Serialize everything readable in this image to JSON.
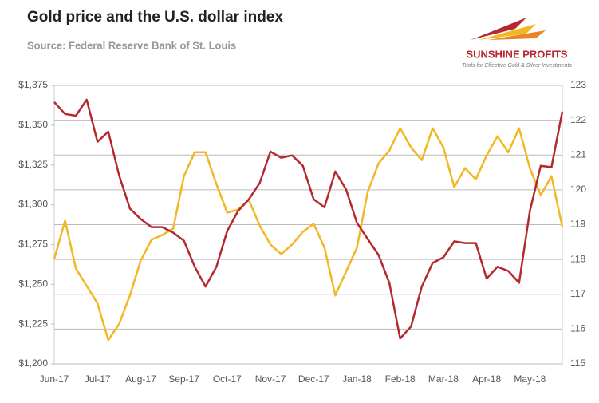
{
  "chart_data": {
    "type": "line",
    "title": "Gold price and the U.S. dollar index",
    "subtitle": "Source: Federal Reserve Bank of St. Louis",
    "logo_title": "SUNSHINE PROFITS",
    "logo_tagline": "Tools for Effective Gold & Silver Investments",
    "categories": [
      "Jun-17",
      null,
      null,
      null,
      "Jul-17",
      null,
      null,
      null,
      "Aug-17",
      null,
      null,
      null,
      "Sep-17",
      null,
      null,
      null,
      "Oct-17",
      null,
      null,
      null,
      "Nov-17",
      null,
      null,
      null,
      "Dec-17",
      null,
      null,
      null,
      "Jan-18",
      null,
      null,
      null,
      "Feb-18",
      null,
      null,
      null,
      "Mar-18",
      null,
      null,
      null,
      "Apr-18",
      null,
      null,
      null,
      "May-18",
      null,
      null,
      null
    ],
    "series": [
      {
        "color": "#f2b824",
        "values": [
          1266,
          1290,
          1260,
          1249,
          1238,
          1215,
          1225,
          1243,
          1265,
          1278,
          1281,
          1285,
          1318,
          1333,
          1333,
          1313,
          1295,
          1297,
          1303,
          1287,
          1275,
          1269,
          1275,
          1283,
          1288,
          1273,
          1243,
          1258,
          1273,
          1308,
          1326,
          1334,
          1348,
          1336,
          1328,
          1348,
          1336,
          1311,
          1323,
          1316,
          1331,
          1343,
          1333,
          1348,
          1323,
          1306,
          1318,
          1286
        ]
      },
      {
        "color": "#b5292e",
        "axis": "y2",
        "values": [
          122.52,
          122.18,
          122.13,
          122.59,
          121.38,
          121.67,
          120.42,
          119.46,
          119.16,
          118.93,
          118.93,
          118.77,
          118.54,
          117.79,
          117.22,
          117.79,
          118.82,
          119.39,
          119.73,
          120.19,
          121.1,
          120.92,
          120.99,
          120.69,
          119.73,
          119.5,
          120.53,
          120.01,
          119.05,
          118.59,
          118.13,
          117.33,
          115.73,
          116.07,
          117.22,
          117.9,
          118.06,
          118.52,
          118.47,
          118.47,
          117.45,
          117.79,
          117.67,
          117.33,
          119.39,
          120.69,
          120.65,
          122.25
        ]
      }
    ],
    "ylim": [
      1200,
      1375
    ],
    "yticks": [
      {
        "value": 1200,
        "label": "$1,200"
      },
      {
        "value": 1225,
        "label": "$1,225"
      },
      {
        "value": 1250,
        "label": "$1,250"
      },
      {
        "value": 1275,
        "label": "$1,275"
      },
      {
        "value": 1300,
        "label": "$1,300"
      },
      {
        "value": 1325,
        "label": "$1,325"
      },
      {
        "value": 1350,
        "label": "$1,350"
      },
      {
        "value": 1375,
        "label": "$1,375"
      }
    ],
    "y2lim": [
      115,
      123
    ],
    "y2ticks": [
      115,
      116,
      117,
      118,
      119,
      120,
      121,
      122,
      123
    ],
    "grid": true
  }
}
